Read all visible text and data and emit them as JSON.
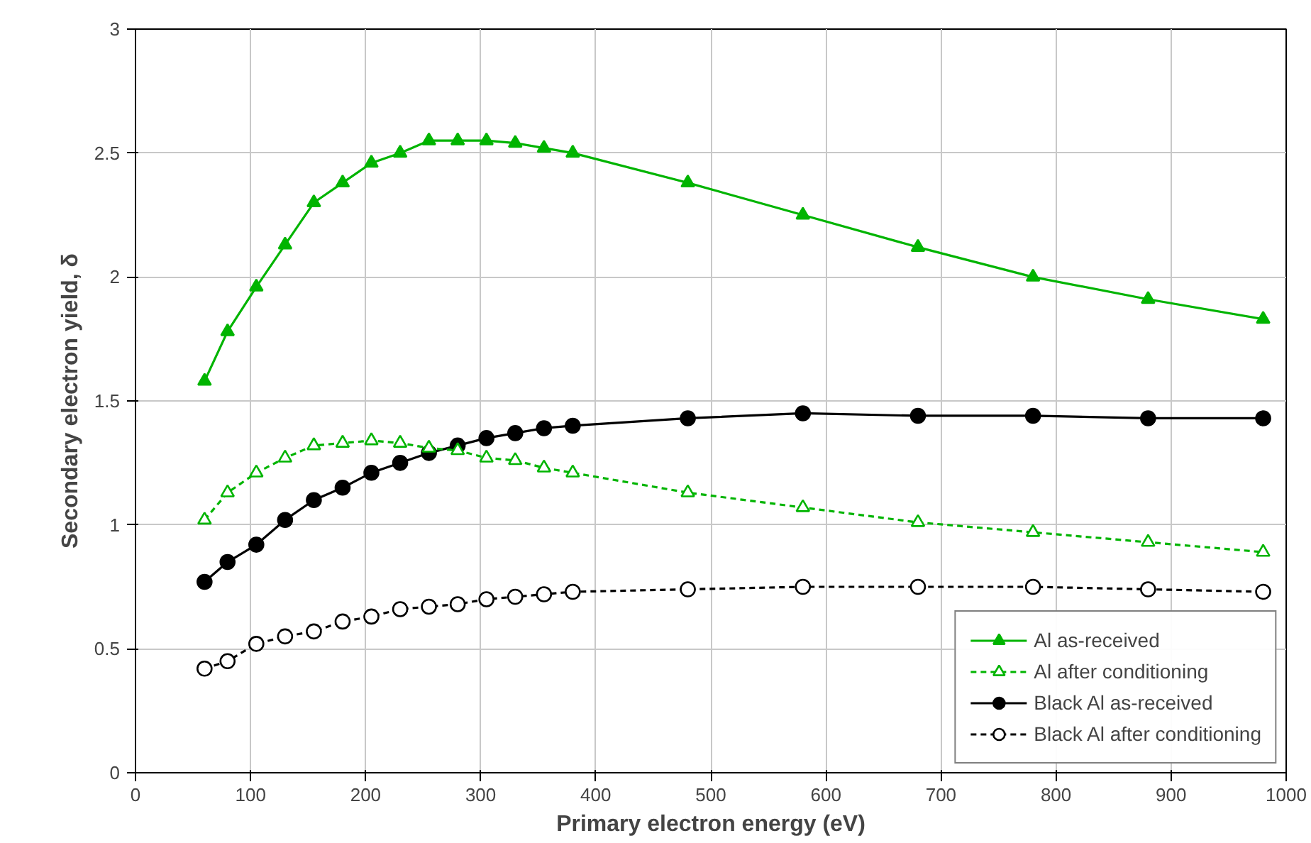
{
  "chart_data": {
    "type": "line",
    "xlabel": "Primary electron energy (eV)",
    "ylabel": "Secondary electron yield, δ",
    "x": [
      60,
      80,
      105,
      130,
      155,
      180,
      205,
      230,
      255,
      280,
      305,
      330,
      355,
      380,
      480,
      580,
      680,
      780,
      880,
      980
    ],
    "xlim": [
      0,
      1000
    ],
    "xticks": [
      0,
      100,
      200,
      300,
      400,
      500,
      600,
      700,
      800,
      900,
      1000
    ],
    "ylim": [
      0,
      3
    ],
    "yticks": [
      0,
      0.5,
      1,
      1.5,
      2,
      2.5,
      3
    ],
    "grid": true,
    "legend": "bottom right",
    "series": [
      {
        "name": "Al as-received",
        "color": "#00b400",
        "marker": "triangle",
        "line_style": "solid",
        "values": [
          1.58,
          1.78,
          1.96,
          2.13,
          2.3,
          2.38,
          2.46,
          2.5,
          2.55,
          2.55,
          2.55,
          2.54,
          2.52,
          2.5,
          2.38,
          2.25,
          2.12,
          2.0,
          1.91,
          1.83
        ]
      },
      {
        "name": "Al after conditioning",
        "color": "#00b400",
        "marker": "triangle",
        "line_style": "dashed",
        "values": [
          1.02,
          1.13,
          1.21,
          1.27,
          1.32,
          1.33,
          1.34,
          1.33,
          1.31,
          1.3,
          1.27,
          1.26,
          1.23,
          1.21,
          1.13,
          1.07,
          1.01,
          0.97,
          0.93,
          0.89
        ]
      },
      {
        "name": "Black Al as-received",
        "color": "#000000",
        "marker": "circle",
        "line_style": "solid",
        "values": [
          0.77,
          0.85,
          0.92,
          1.02,
          1.1,
          1.15,
          1.21,
          1.25,
          1.29,
          1.32,
          1.35,
          1.37,
          1.39,
          1.4,
          1.43,
          1.45,
          1.44,
          1.44,
          1.43,
          1.43
        ]
      },
      {
        "name": "Black Al after conditioning",
        "color": "#000000",
        "marker": "circle",
        "line_style": "dashed",
        "values": [
          0.42,
          0.45,
          0.52,
          0.55,
          0.57,
          0.61,
          0.63,
          0.66,
          0.67,
          0.68,
          0.7,
          0.71,
          0.72,
          0.73,
          0.74,
          0.75,
          0.75,
          0.75,
          0.74,
          0.73
        ]
      }
    ]
  }
}
